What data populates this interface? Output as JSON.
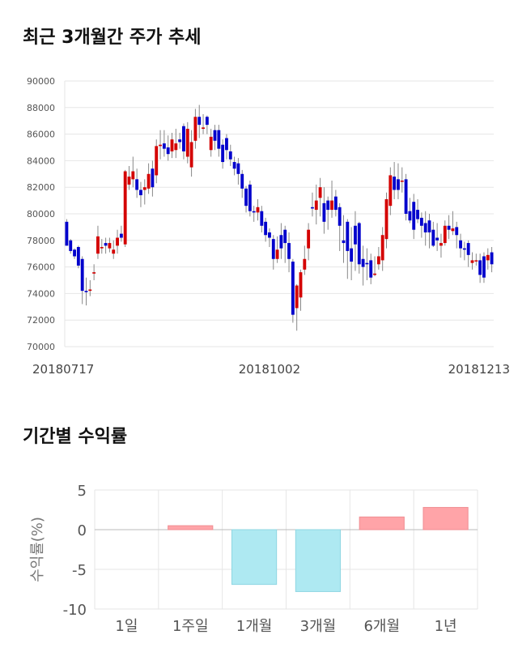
{
  "sections": {
    "price_title": "최근 3개월간 주가 추세",
    "returns_title": "기간별 수익률"
  },
  "colors": {
    "up": "#d40000",
    "down": "#0000cc",
    "wick": "#888888",
    "grid": "#e6e6e6",
    "bar_positive": "#ffa4a8",
    "bar_negative": "#aee9f2"
  },
  "chart_data": [
    {
      "type": "candlestick",
      "title": "최근 3개월간 주가 추세",
      "ylim": [
        70000,
        90000
      ],
      "yticks": [
        70000,
        72000,
        74000,
        76000,
        78000,
        80000,
        82000,
        84000,
        86000,
        88000,
        90000
      ],
      "xtick_labels": [
        "20180717",
        "20181002",
        "20181213"
      ],
      "xtick_indices": [
        0,
        52,
        102
      ],
      "candles": [
        [
          79400,
          77600,
          79600,
          77600
        ],
        [
          78000,
          77200,
          78100,
          77000
        ],
        [
          77300,
          76800,
          77400,
          76600
        ],
        [
          77500,
          76100,
          77600,
          75900
        ],
        [
          76600,
          74200,
          76800,
          73200
        ],
        [
          74200,
          74100,
          75200,
          73100
        ],
        [
          74200,
          74300,
          75000,
          73800
        ],
        [
          75500,
          75600,
          76200,
          75000
        ],
        [
          77000,
          78300,
          79100,
          76600
        ],
        [
          77400,
          77500,
          78100,
          77000
        ],
        [
          77800,
          77600,
          78200,
          77000
        ],
        [
          77400,
          77800,
          78200,
          77100
        ],
        [
          77000,
          77300,
          78000,
          76600
        ],
        [
          77600,
          78200,
          78800,
          77000
        ],
        [
          78500,
          78200,
          79100,
          77900
        ],
        [
          77700,
          83200,
          83300,
          77500
        ],
        [
          82200,
          82800,
          83600,
          81800
        ],
        [
          82600,
          83200,
          84300,
          82000
        ],
        [
          82600,
          81800,
          83400,
          81200
        ],
        [
          81800,
          81400,
          82400,
          80500
        ],
        [
          81800,
          82000,
          82600,
          80700
        ],
        [
          81900,
          83000,
          83800,
          81500
        ],
        [
          83400,
          82000,
          84000,
          81300
        ],
        [
          82900,
          85100,
          85600,
          82300
        ],
        [
          85100,
          85200,
          86300,
          84100
        ],
        [
          85300,
          84900,
          86300,
          84300
        ],
        [
          85000,
          84500,
          85900,
          84000
        ],
        [
          84700,
          85600,
          86100,
          84200
        ],
        [
          84800,
          85300,
          86400,
          84200
        ],
        [
          85600,
          85400,
          86100,
          84900
        ],
        [
          86600,
          84700,
          86800,
          84100
        ],
        [
          84300,
          86400,
          86900,
          83800
        ],
        [
          83500,
          85400,
          86300,
          82800
        ],
        [
          85500,
          87300,
          87900,
          84900
        ],
        [
          87300,
          86700,
          88200,
          85700
        ],
        [
          86400,
          86500,
          87500,
          86000
        ],
        [
          87300,
          86700,
          87400,
          86000
        ],
        [
          84800,
          85800,
          86400,
          84300
        ],
        [
          86300,
          85500,
          86700,
          84800
        ],
        [
          86300,
          84900,
          86700,
          84300
        ],
        [
          85200,
          83900,
          85600,
          83400
        ],
        [
          85700,
          84800,
          86000,
          84100
        ],
        [
          84700,
          84100,
          85200,
          83600
        ],
        [
          83900,
          83400,
          84300,
          82900
        ],
        [
          83800,
          83000,
          84200,
          82200
        ],
        [
          83000,
          81900,
          83300,
          81200
        ],
        [
          81900,
          80600,
          82100,
          80100
        ],
        [
          82200,
          80200,
          82500,
          79800
        ],
        [
          80200,
          80100,
          80600,
          79400
        ],
        [
          80100,
          80500,
          81100,
          79500
        ],
        [
          80200,
          79100,
          80600,
          78600
        ],
        [
          79400,
          78400,
          79700,
          77900
        ],
        [
          78600,
          78200,
          78900,
          77500
        ],
        [
          78100,
          76600,
          78400,
          75800
        ],
        [
          76600,
          77300,
          78300,
          76300
        ],
        [
          78400,
          77400,
          79300,
          76600
        ],
        [
          78800,
          77800,
          79100,
          76300
        ],
        [
          77800,
          76600,
          78600,
          75600
        ],
        [
          76400,
          72400,
          76600,
          71800
        ],
        [
          72900,
          74600,
          74700,
          71200
        ],
        [
          73700,
          75600,
          75800,
          72700
        ],
        [
          75800,
          76600,
          77600,
          75400
        ],
        [
          77400,
          78800,
          79300,
          76500
        ],
        [
          80500,
          80400,
          81600,
          79800
        ],
        [
          80300,
          81000,
          82200,
          79200
        ],
        [
          81200,
          82000,
          82700,
          79800
        ],
        [
          80800,
          79400,
          82000,
          78500
        ],
        [
          81000,
          80300,
          81300,
          78800
        ],
        [
          80300,
          81000,
          82500,
          79700
        ],
        [
          81300,
          80300,
          81800,
          79800
        ],
        [
          80500,
          79100,
          80800,
          77200
        ],
        [
          78000,
          77800,
          79900,
          76300
        ],
        [
          79400,
          77200,
          79600,
          75100
        ],
        [
          77400,
          76400,
          79000,
          75000
        ],
        [
          79100,
          77700,
          80200,
          75700
        ],
        [
          79300,
          76200,
          79400,
          75500
        ],
        [
          76600,
          76000,
          77600,
          74600
        ],
        [
          76300,
          76200,
          77400,
          75000
        ],
        [
          76500,
          75200,
          77000,
          74700
        ],
        [
          75400,
          75500,
          76800,
          75300
        ],
        [
          76200,
          76800,
          77500,
          75800
        ],
        [
          76500,
          78400,
          79000,
          75700
        ],
        [
          78100,
          81100,
          81600,
          77400
        ],
        [
          80600,
          82900,
          83500,
          79900
        ],
        [
          82800,
          81800,
          83900,
          81100
        ],
        [
          82600,
          81800,
          83800,
          81100
        ],
        [
          82500,
          82500,
          83500,
          81600
        ],
        [
          82600,
          80000,
          83000,
          79500
        ],
        [
          80200,
          79500,
          81200,
          79300
        ],
        [
          80900,
          78800,
          81500,
          78100
        ],
        [
          80300,
          79600,
          81100,
          79300
        ],
        [
          79700,
          79100,
          80100,
          78200
        ],
        [
          79300,
          78600,
          80200,
          77600
        ],
        [
          79500,
          78600,
          80000,
          77400
        ],
        [
          78800,
          77600,
          79400,
          77500
        ],
        [
          78200,
          78000,
          79300,
          77200
        ],
        [
          77600,
          77800,
          78500,
          76700
        ],
        [
          77800,
          79100,
          79500,
          77600
        ],
        [
          79100,
          78800,
          79900,
          78100
        ],
        [
          78700,
          78900,
          80200,
          78400
        ],
        [
          79000,
          78400,
          79400,
          77400
        ],
        [
          78000,
          77400,
          78500,
          76700
        ],
        [
          77400,
          77300,
          77900,
          76500
        ],
        [
          77800,
          76900,
          78000,
          76000
        ],
        [
          76300,
          76500,
          77100,
          75800
        ],
        [
          76500,
          76500,
          77000,
          76100
        ],
        [
          76500,
          75400,
          77000,
          74800
        ],
        [
          76800,
          75200,
          77100,
          74800
        ],
        [
          76500,
          76900,
          77400,
          75800
        ],
        [
          77100,
          76200,
          77500,
          75600
        ]
      ]
    },
    {
      "type": "bar",
      "title": "기간별 수익률",
      "ylabel": "수익률(%)",
      "ylim": [
        -10,
        5
      ],
      "yticks": [
        5,
        0,
        -5,
        -10
      ],
      "categories": [
        "1일",
        "1주일",
        "1개월",
        "3개월",
        "6개월",
        "1년"
      ],
      "values": [
        0,
        0.5,
        -6.9,
        -7.8,
        1.6,
        2.8
      ]
    }
  ]
}
